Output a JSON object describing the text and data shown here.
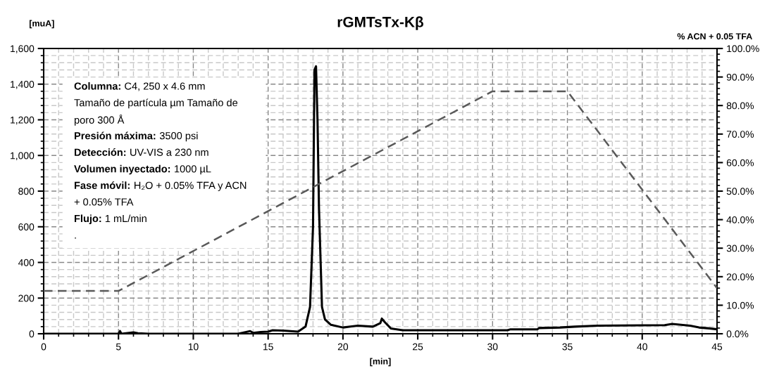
{
  "chart_data": {
    "type": "line",
    "title": "rGMTsTx-Kβ",
    "xlabel": "[min]",
    "ylabel": "[muA]",
    "y2label": "% ACN + 0.05 TFA",
    "xlim": [
      0,
      45
    ],
    "xticks": [
      0,
      5,
      10,
      15,
      20,
      25,
      30,
      35,
      40,
      45
    ],
    "ylim": [
      0,
      1600
    ],
    "yticks": [
      {
        "value": 0,
        "label": "0"
      },
      {
        "value": 200,
        "label": "200"
      },
      {
        "value": 400,
        "label": "400"
      },
      {
        "value": 600,
        "label": "600"
      },
      {
        "value": 800,
        "label": "800"
      },
      {
        "value": 1000,
        "label": "1,000"
      },
      {
        "value": 1200,
        "label": "1,200"
      },
      {
        "value": 1400,
        "label": "1,400"
      },
      {
        "value": 1600,
        "label": "1,600"
      }
    ],
    "y2lim": [
      0,
      100
    ],
    "y2ticks": [
      {
        "value": 0,
        "label": "0.0%"
      },
      {
        "value": 10,
        "label": "10.0%"
      },
      {
        "value": 20,
        "label": "20.0%"
      },
      {
        "value": 30,
        "label": "30.0%"
      },
      {
        "value": 40,
        "label": "40.0%"
      },
      {
        "value": 50,
        "label": "50.0%"
      },
      {
        "value": 60,
        "label": "60.0%"
      },
      {
        "value": 70,
        "label": "70.0%"
      },
      {
        "value": 80,
        "label": "80.0%"
      },
      {
        "value": 90,
        "label": "90.0%"
      },
      {
        "value": 100,
        "label": "100.0%"
      }
    ],
    "grid": true,
    "legend": false,
    "marker": "none",
    "series": [
      {
        "color": "#000000",
        "line_style": "solid",
        "x": [
          0,
          5,
          5.1,
          5.2,
          6,
          6.3,
          7,
          13,
          13.8,
          14,
          14.5,
          15,
          15.3,
          16,
          17,
          17.5,
          17.8,
          18,
          18.1,
          18.2,
          18.3,
          18.4,
          18.6,
          18.8,
          19.2,
          20,
          20.5,
          21,
          22,
          22.5,
          22.6,
          22.8,
          23.2,
          24,
          31,
          31.2,
          33,
          33.1,
          34.5,
          35.5,
          37,
          41.5,
          42,
          42.6,
          43.2,
          43.8,
          44.5,
          45
        ],
        "values": [
          0,
          0,
          15,
          0,
          8,
          3,
          0,
          0,
          15,
          5,
          10,
          12,
          20,
          18,
          12,
          40,
          150,
          600,
          1480,
          1500,
          1200,
          700,
          150,
          80,
          50,
          35,
          40,
          45,
          40,
          60,
          85,
          65,
          30,
          20,
          20,
          25,
          25,
          32,
          35,
          40,
          45,
          48,
          55,
          50,
          45,
          35,
          30,
          25
        ]
      },
      {
        "color": "#595959",
        "line_style": "dashed",
        "axis": "y2",
        "x": [
          0,
          5,
          30,
          35,
          45
        ],
        "values": [
          15,
          15,
          85,
          85,
          16
        ]
      }
    ],
    "annotations": [
      "Columna: C4, 250 x 4.6 mm\nTamaño de partícula µm Tamaño de\nporo 300 Å\nPresión máxima: 3500 psi\nDetección: UV-VIS a 230 nm\nVolumen inyectado: 1000 µL\nFase móvil: H₂O + 0.05% TFA y ACN\n+ 0.05% TFA\nFlujo: 1 mL/min\n."
    ]
  }
}
